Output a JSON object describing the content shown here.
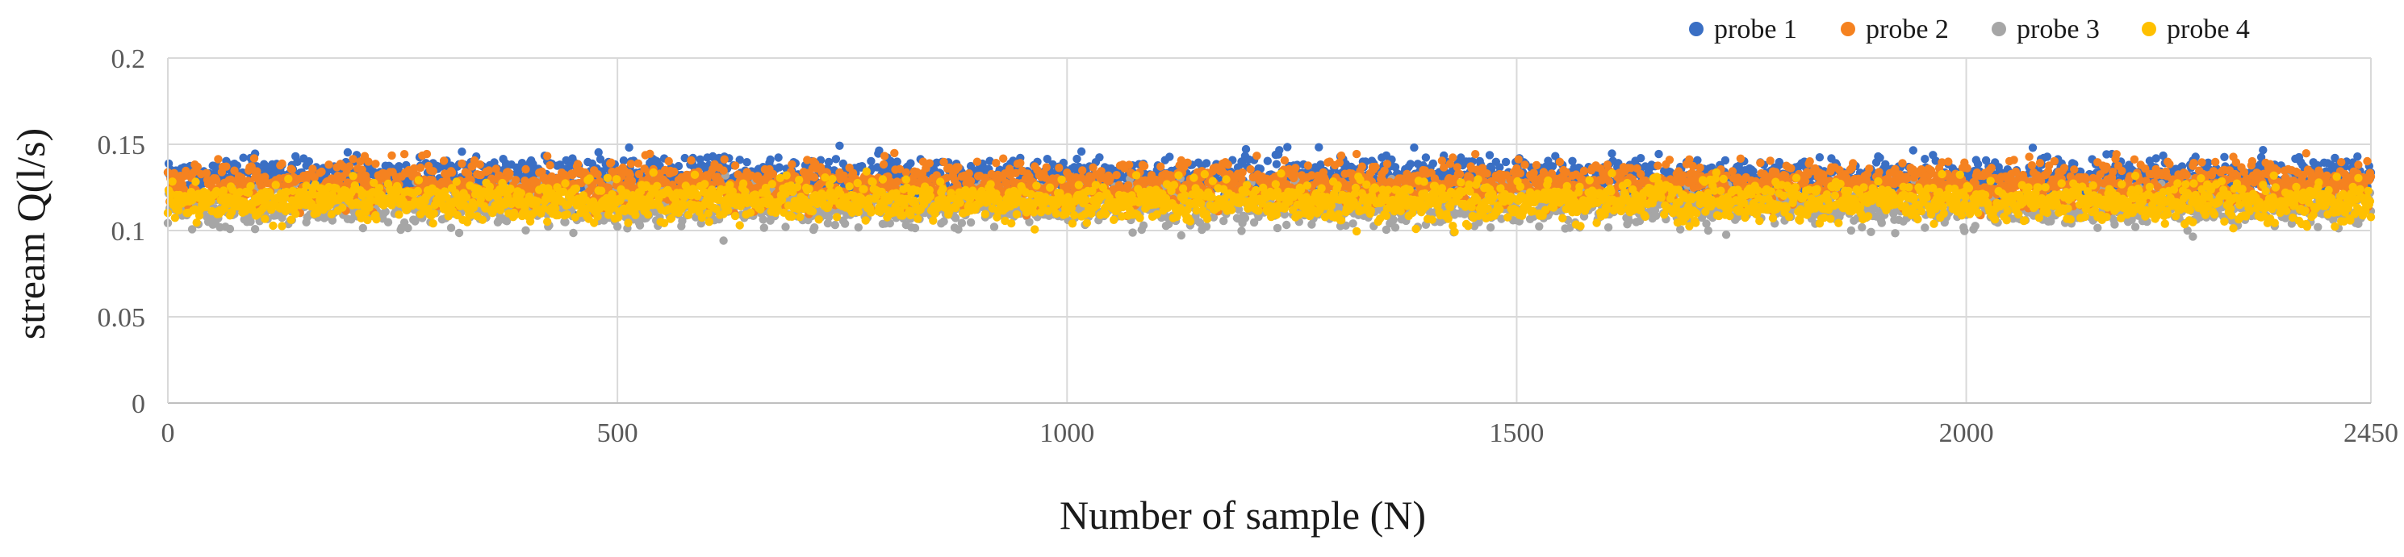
{
  "chart_data": {
    "type": "scatter",
    "xlabel": "Number of sample (N)",
    "ylabel": "stream Q(l/s)",
    "xlim": [
      0,
      2450
    ],
    "ylim": [
      0,
      0.2
    ],
    "x_ticks": [
      "0",
      "500",
      "1000",
      "1500",
      "2000",
      "2450"
    ],
    "x_tick_values": [
      0,
      500,
      1000,
      1500,
      2000,
      2450
    ],
    "y_ticks": [
      "0",
      "0.05",
      "0.1",
      "0.15",
      "0.2"
    ],
    "y_tick_values": [
      0,
      0.05,
      0.1,
      0.15,
      0.2
    ],
    "grid": true,
    "legend_position": "top-right",
    "n_samples": 2450,
    "series": [
      {
        "name": "probe 1",
        "color": "#3A6FC4",
        "mean": 0.131,
        "spread": 0.0055,
        "min": 0.098,
        "max": 0.15
      },
      {
        "name": "probe 2",
        "color": "#F58220",
        "mean": 0.127,
        "spread": 0.0065,
        "min": 0.086,
        "max": 0.145
      },
      {
        "name": "probe 3",
        "color": "#A6A6A6",
        "mean": 0.115,
        "spread": 0.006,
        "min": 0.094,
        "max": 0.132
      },
      {
        "name": "probe 4",
        "color": "#FFC000",
        "mean": 0.117,
        "spread": 0.0055,
        "min": 0.095,
        "max": 0.135
      }
    ]
  }
}
